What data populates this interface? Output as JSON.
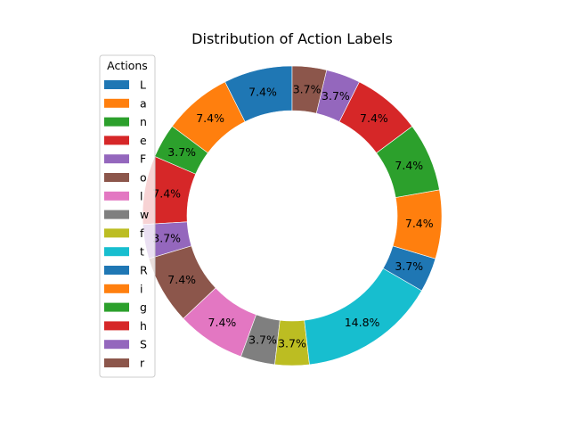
{
  "chart_data": {
    "type": "pie",
    "donut": true,
    "title": "Distribution of Action Labels",
    "legend_title": "Actions",
    "legend_position": "top-left",
    "start_angle_deg": 90,
    "direction": "counterclockwise",
    "slices": [
      {
        "label": "L",
        "percent": 7.4,
        "pct_label": "7.4%",
        "color": "#1f77b4"
      },
      {
        "label": "a",
        "percent": 7.4,
        "pct_label": "7.4%",
        "color": "#ff7f0e"
      },
      {
        "label": "n",
        "percent": 3.7,
        "pct_label": "3.7%",
        "color": "#2ca02c"
      },
      {
        "label": "e",
        "percent": 7.4,
        "pct_label": "7.4%",
        "color": "#d62728"
      },
      {
        "label": "F",
        "percent": 3.7,
        "pct_label": "3.7%",
        "color": "#9467bd"
      },
      {
        "label": "o",
        "percent": 7.4,
        "pct_label": "7.4%",
        "color": "#8c564b"
      },
      {
        "label": "l",
        "percent": 7.4,
        "pct_label": "7.4%",
        "color": "#e377c2"
      },
      {
        "label": "w",
        "percent": 3.7,
        "pct_label": "3.7%",
        "color": "#7f7f7f"
      },
      {
        "label": "f",
        "percent": 3.7,
        "pct_label": "3.7%",
        "color": "#bcbd22"
      },
      {
        "label": "t",
        "percent": 14.8,
        "pct_label": "14.8%",
        "color": "#17becf"
      },
      {
        "label": "R",
        "percent": 3.7,
        "pct_label": "3.7%",
        "color": "#1f77b4"
      },
      {
        "label": "i",
        "percent": 7.4,
        "pct_label": "7.4%",
        "color": "#ff7f0e"
      },
      {
        "label": "g",
        "percent": 7.4,
        "pct_label": "7.4%",
        "color": "#2ca02c"
      },
      {
        "label": "h",
        "percent": 7.4,
        "pct_label": "7.4%",
        "color": "#d62728"
      },
      {
        "label": "S",
        "percent": 3.7,
        "pct_label": "3.7%",
        "color": "#9467bd"
      },
      {
        "label": "r",
        "percent": 3.7,
        "pct_label": "3.7%",
        "color": "#8c564b"
      }
    ]
  }
}
